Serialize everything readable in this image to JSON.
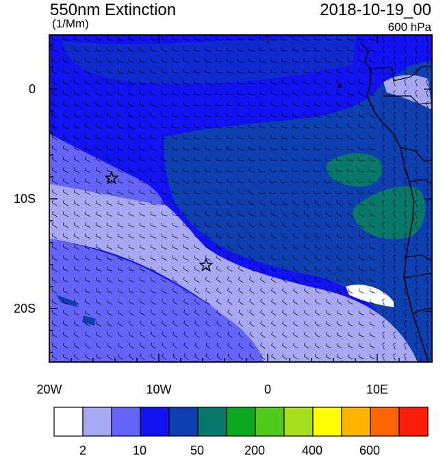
{
  "header": {
    "title": "550nm Extinction",
    "units": "(1/Mm)",
    "datetime": "2018-10-19_00",
    "level": "600 hPa"
  },
  "map": {
    "region": "Southeast Atlantic / southwest Africa coast",
    "lon_range": [
      -20,
      15
    ],
    "lat_range": [
      -25,
      5
    ],
    "y_ticks": [
      "0",
      "10S",
      "20S"
    ],
    "x_ticks": [
      "20W",
      "10W",
      "0",
      "10E"
    ],
    "markers": [
      {
        "name": "star-marker",
        "lon": -14.3,
        "lat": -8.0
      },
      {
        "name": "star-marker",
        "lon": -5.7,
        "lat": -16.0
      }
    ],
    "overlay": "wind barbs"
  },
  "colorbar": {
    "colors": [
      "#ffffff",
      "#a6a8f4",
      "#6464f8",
      "#1212f0",
      "#0e3fb0",
      "#08786a",
      "#0aa81e",
      "#52c81a",
      "#a8e020",
      "#ffff00",
      "#ffb400",
      "#ff6400",
      "#ff1e0a"
    ],
    "labels": [
      "2",
      "10",
      "50",
      "200",
      "400",
      "600"
    ]
  }
}
